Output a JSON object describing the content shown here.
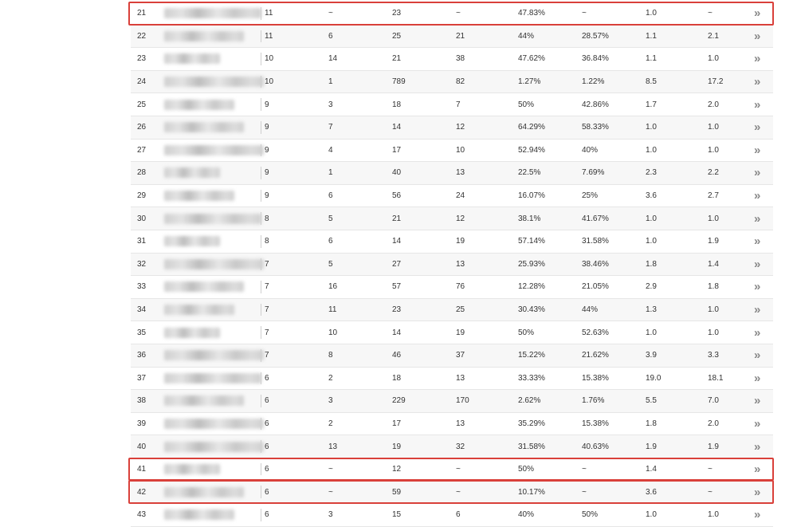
{
  "rows": [
    {
      "rank": "21",
      "v1": "11",
      "v2": "~",
      "v3": "23",
      "v4": "~",
      "v5": "47.83%",
      "v6": "~",
      "v7": "1.0",
      "v8": "~",
      "highlighted": true
    },
    {
      "rank": "22",
      "v1": "11",
      "v2": "6",
      "v3": "25",
      "v4": "21",
      "v5": "44%",
      "v6": "28.57%",
      "v7": "1.1",
      "v8": "2.1"
    },
    {
      "rank": "23",
      "v1": "10",
      "v2": "14",
      "v3": "21",
      "v4": "38",
      "v5": "47.62%",
      "v6": "36.84%",
      "v7": "1.1",
      "v8": "1.0"
    },
    {
      "rank": "24",
      "v1": "10",
      "v2": "1",
      "v3": "789",
      "v4": "82",
      "v5": "1.27%",
      "v6": "1.22%",
      "v7": "8.5",
      "v8": "17.2"
    },
    {
      "rank": "25",
      "v1": "9",
      "v2": "3",
      "v3": "18",
      "v4": "7",
      "v5": "50%",
      "v6": "42.86%",
      "v7": "1.7",
      "v8": "2.0"
    },
    {
      "rank": "26",
      "v1": "9",
      "v2": "7",
      "v3": "14",
      "v4": "12",
      "v5": "64.29%",
      "v6": "58.33%",
      "v7": "1.0",
      "v8": "1.0"
    },
    {
      "rank": "27",
      "v1": "9",
      "v2": "4",
      "v3": "17",
      "v4": "10",
      "v5": "52.94%",
      "v6": "40%",
      "v7": "1.0",
      "v8": "1.0"
    },
    {
      "rank": "28",
      "v1": "9",
      "v2": "1",
      "v3": "40",
      "v4": "13",
      "v5": "22.5%",
      "v6": "7.69%",
      "v7": "2.3",
      "v8": "2.2"
    },
    {
      "rank": "29",
      "v1": "9",
      "v2": "6",
      "v3": "56",
      "v4": "24",
      "v5": "16.07%",
      "v6": "25%",
      "v7": "3.6",
      "v8": "2.7"
    },
    {
      "rank": "30",
      "v1": "8",
      "v2": "5",
      "v3": "21",
      "v4": "12",
      "v5": "38.1%",
      "v6": "41.67%",
      "v7": "1.0",
      "v8": "1.0"
    },
    {
      "rank": "31",
      "v1": "8",
      "v2": "6",
      "v3": "14",
      "v4": "19",
      "v5": "57.14%",
      "v6": "31.58%",
      "v7": "1.0",
      "v8": "1.9"
    },
    {
      "rank": "32",
      "v1": "7",
      "v2": "5",
      "v3": "27",
      "v4": "13",
      "v5": "25.93%",
      "v6": "38.46%",
      "v7": "1.8",
      "v8": "1.4"
    },
    {
      "rank": "33",
      "v1": "7",
      "v2": "16",
      "v3": "57",
      "v4": "76",
      "v5": "12.28%",
      "v6": "21.05%",
      "v7": "2.9",
      "v8": "1.8"
    },
    {
      "rank": "34",
      "v1": "7",
      "v2": "11",
      "v3": "23",
      "v4": "25",
      "v5": "30.43%",
      "v6": "44%",
      "v7": "1.3",
      "v8": "1.0"
    },
    {
      "rank": "35",
      "v1": "7",
      "v2": "10",
      "v3": "14",
      "v4": "19",
      "v5": "50%",
      "v6": "52.63%",
      "v7": "1.0",
      "v8": "1.0"
    },
    {
      "rank": "36",
      "v1": "7",
      "v2": "8",
      "v3": "46",
      "v4": "37",
      "v5": "15.22%",
      "v6": "21.62%",
      "v7": "3.9",
      "v8": "3.3"
    },
    {
      "rank": "37",
      "v1": "6",
      "v2": "2",
      "v3": "18",
      "v4": "13",
      "v5": "33.33%",
      "v6": "15.38%",
      "v7": "19.0",
      "v8": "18.1"
    },
    {
      "rank": "38",
      "v1": "6",
      "v2": "3",
      "v3": "229",
      "v4": "170",
      "v5": "2.62%",
      "v6": "1.76%",
      "v7": "5.5",
      "v8": "7.0"
    },
    {
      "rank": "39",
      "v1": "6",
      "v2": "2",
      "v3": "17",
      "v4": "13",
      "v5": "35.29%",
      "v6": "15.38%",
      "v7": "1.8",
      "v8": "2.0"
    },
    {
      "rank": "40",
      "v1": "6",
      "v2": "13",
      "v3": "19",
      "v4": "32",
      "v5": "31.58%",
      "v6": "40.63%",
      "v7": "1.9",
      "v8": "1.9"
    },
    {
      "rank": "41",
      "v1": "6",
      "v2": "~",
      "v3": "12",
      "v4": "~",
      "v5": "50%",
      "v6": "~",
      "v7": "1.4",
      "v8": "~",
      "highlighted": true
    },
    {
      "rank": "42",
      "v1": "6",
      "v2": "~",
      "v3": "59",
      "v4": "~",
      "v5": "10.17%",
      "v6": "~",
      "v7": "3.6",
      "v8": "~",
      "highlighted": true
    },
    {
      "rank": "43",
      "v1": "6",
      "v2": "3",
      "v3": "15",
      "v4": "6",
      "v5": "40%",
      "v6": "50%",
      "v7": "1.0",
      "v8": "1.0"
    }
  ],
  "row_action_glyph": "»",
  "row_action_icon": "double-chevron-right-icon",
  "highlight_color": "#d9403a"
}
